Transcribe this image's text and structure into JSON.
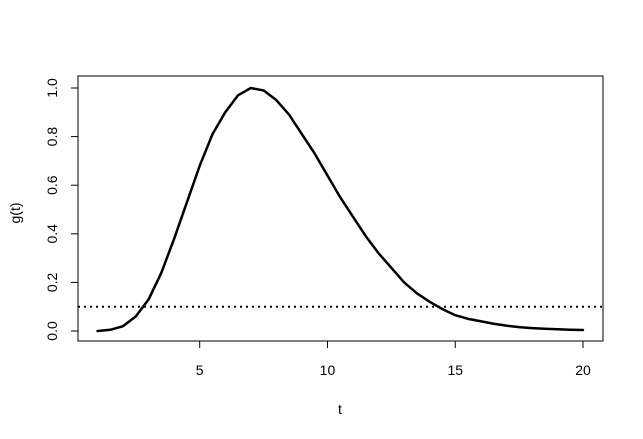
{
  "chart_data": {
    "type": "line",
    "title": "",
    "xlabel": "t",
    "ylabel": "g(t)",
    "xlim": [
      1,
      20
    ],
    "ylim": [
      0,
      1
    ],
    "x_ticks": [
      5,
      10,
      15,
      20
    ],
    "x_tick_labels": [
      "5",
      "10",
      "15",
      "20"
    ],
    "y_ticks": [
      0.0,
      0.2,
      0.4,
      0.6,
      0.8,
      1.0
    ],
    "y_tick_labels": [
      "0.0",
      "0.2",
      "0.4",
      "0.6",
      "0.8",
      "1.0"
    ],
    "grid": false,
    "series": [
      {
        "style": "solid",
        "color": "#000000",
        "x": [
          1.0,
          1.5,
          2.0,
          2.5,
          3.0,
          3.5,
          4.0,
          4.5,
          5.0,
          5.5,
          6.0,
          6.5,
          7.0,
          7.5,
          8.0,
          8.5,
          9.0,
          9.5,
          10.0,
          10.5,
          11.0,
          11.5,
          12.0,
          12.5,
          13.0,
          13.5,
          14.0,
          14.5,
          15.0,
          15.5,
          16.0,
          16.5,
          17.0,
          17.5,
          18.0,
          18.5,
          19.0,
          19.5,
          20.0
        ],
        "y": [
          0.0,
          0.005,
          0.02,
          0.06,
          0.13,
          0.24,
          0.38,
          0.53,
          0.68,
          0.81,
          0.9,
          0.97,
          1.0,
          0.99,
          0.95,
          0.89,
          0.81,
          0.73,
          0.64,
          0.55,
          0.47,
          0.39,
          0.32,
          0.26,
          0.2,
          0.155,
          0.12,
          0.09,
          0.065,
          0.05,
          0.04,
          0.03,
          0.022,
          0.016,
          0.012,
          0.009,
          0.007,
          0.005,
          0.004
        ]
      }
    ],
    "reference_lines": [
      {
        "orientation": "horizontal",
        "y": 0.1,
        "style": "dotted",
        "color": "#000000"
      }
    ]
  }
}
